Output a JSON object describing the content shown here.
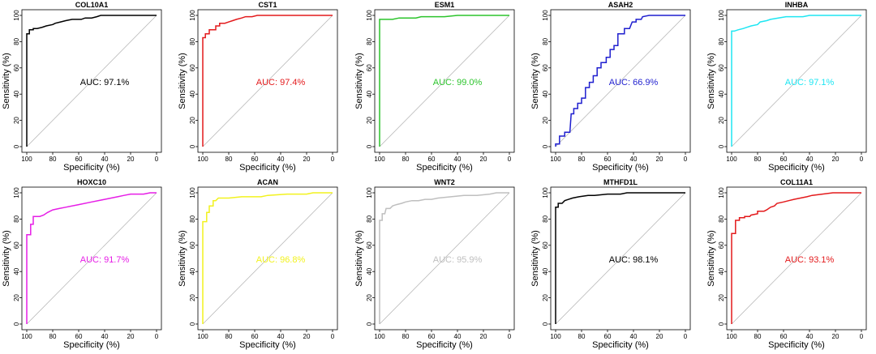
{
  "chart_data": [
    {
      "type": "line",
      "title": "COL10A1",
      "color": "#000000",
      "auc_label": "AUC: 97.1%",
      "xlabel": "Specificity (%)",
      "ylabel": "Sensitivity (%)",
      "xlim": [
        100,
        0
      ],
      "ylim": [
        0,
        100
      ],
      "xticks": [
        "100",
        "80",
        "60",
        "40",
        "20",
        "0"
      ],
      "yticks": [
        "0",
        "20",
        "40",
        "60",
        "80",
        "100"
      ],
      "points": [
        [
          100,
          0
        ],
        [
          100,
          86
        ],
        [
          98,
          86
        ],
        [
          98,
          89
        ],
        [
          95,
          89
        ],
        [
          95,
          90
        ],
        [
          92,
          90
        ],
        [
          88,
          91
        ],
        [
          85,
          92
        ],
        [
          80,
          93
        ],
        [
          78,
          94
        ],
        [
          74,
          95
        ],
        [
          70,
          96
        ],
        [
          65,
          97
        ],
        [
          58,
          97
        ],
        [
          55,
          98
        ],
        [
          50,
          98
        ],
        [
          46,
          99
        ],
        [
          43,
          100
        ],
        [
          0,
          100
        ]
      ]
    },
    {
      "type": "line",
      "title": "CST1",
      "color": "#e31a1c",
      "auc_label": "AUC: 97.4%",
      "xlabel": "Specificity (%)",
      "ylabel": "Sensitivity (%)",
      "xlim": [
        100,
        0
      ],
      "ylim": [
        0,
        100
      ],
      "xticks": [
        "100",
        "80",
        "60",
        "40",
        "20",
        "0"
      ],
      "yticks": [
        "0",
        "20",
        "40",
        "60",
        "80",
        "100"
      ],
      "points": [
        [
          100,
          0
        ],
        [
          100,
          83
        ],
        [
          98,
          83
        ],
        [
          98,
          86
        ],
        [
          95,
          86
        ],
        [
          95,
          89
        ],
        [
          90,
          89
        ],
        [
          90,
          92
        ],
        [
          87,
          92
        ],
        [
          87,
          94
        ],
        [
          83,
          94
        ],
        [
          80,
          95
        ],
        [
          77,
          96
        ],
        [
          74,
          97
        ],
        [
          70,
          98
        ],
        [
          67,
          99
        ],
        [
          62,
          99
        ],
        [
          58,
          100
        ],
        [
          0,
          100
        ]
      ]
    },
    {
      "type": "line",
      "title": "ESM1",
      "color": "#2bc42b",
      "auc_label": "AUC: 99.0%",
      "xlabel": "Specificity (%)",
      "ylabel": "Sensitivity (%)",
      "xlim": [
        100,
        0
      ],
      "ylim": [
        0,
        100
      ],
      "xticks": [
        "100",
        "80",
        "60",
        "40",
        "20",
        "0"
      ],
      "yticks": [
        "0",
        "20",
        "40",
        "60",
        "80",
        "100"
      ],
      "points": [
        [
          100,
          0
        ],
        [
          100,
          97
        ],
        [
          95,
          97
        ],
        [
          90,
          97
        ],
        [
          85,
          98
        ],
        [
          78,
          98
        ],
        [
          72,
          98
        ],
        [
          68,
          99
        ],
        [
          55,
          99
        ],
        [
          50,
          99
        ],
        [
          40,
          100
        ],
        [
          0,
          100
        ]
      ]
    },
    {
      "type": "line",
      "title": "ASAH2",
      "color": "#1f1fcf",
      "auc_label": "AUC: 66.9%",
      "xlabel": "Specificity (%)",
      "ylabel": "Sensitivity (%)",
      "xlim": [
        100,
        0
      ],
      "ylim": [
        0,
        100
      ],
      "xticks": [
        "100",
        "80",
        "60",
        "40",
        "20",
        "0"
      ],
      "yticks": [
        "0",
        "20",
        "40",
        "60",
        "80",
        "100"
      ],
      "points": [
        [
          100,
          0
        ],
        [
          100,
          2
        ],
        [
          97,
          2
        ],
        [
          97,
          8
        ],
        [
          93,
          8
        ],
        [
          93,
          11
        ],
        [
          89,
          11
        ],
        [
          88,
          25
        ],
        [
          86,
          25
        ],
        [
          86,
          29
        ],
        [
          83,
          29
        ],
        [
          83,
          33
        ],
        [
          80,
          33
        ],
        [
          80,
          37
        ],
        [
          77,
          37
        ],
        [
          77,
          45
        ],
        [
          74,
          45
        ],
        [
          74,
          49
        ],
        [
          71,
          49
        ],
        [
          71,
          54
        ],
        [
          68,
          54
        ],
        [
          68,
          60
        ],
        [
          65,
          60
        ],
        [
          65,
          64
        ],
        [
          61,
          64
        ],
        [
          61,
          68
        ],
        [
          58,
          68
        ],
        [
          58,
          74
        ],
        [
          55,
          74
        ],
        [
          55,
          77
        ],
        [
          52,
          77
        ],
        [
          52,
          86
        ],
        [
          47,
          86
        ],
        [
          47,
          90
        ],
        [
          43,
          90
        ],
        [
          41,
          95
        ],
        [
          38,
          95
        ],
        [
          38,
          97
        ],
        [
          34,
          97
        ],
        [
          33,
          99
        ],
        [
          28,
          100
        ],
        [
          0,
          100
        ]
      ]
    },
    {
      "type": "line",
      "title": "INHBA",
      "color": "#1ee6f2",
      "auc_label": "AUC: 97.1%",
      "xlabel": "Specificity (%)",
      "ylabel": "Sensitivity (%)",
      "xlim": [
        100,
        0
      ],
      "ylim": [
        0,
        100
      ],
      "xticks": [
        "100",
        "80",
        "60",
        "40",
        "20",
        "0"
      ],
      "yticks": [
        "0",
        "20",
        "40",
        "60",
        "80",
        "100"
      ],
      "points": [
        [
          100,
          0
        ],
        [
          100,
          88
        ],
        [
          98,
          88
        ],
        [
          95,
          89
        ],
        [
          91,
          90
        ],
        [
          88,
          91
        ],
        [
          85,
          92
        ],
        [
          80,
          93
        ],
        [
          78,
          95
        ],
        [
          73,
          96
        ],
        [
          70,
          97
        ],
        [
          64,
          98
        ],
        [
          58,
          99
        ],
        [
          45,
          99
        ],
        [
          40,
          100
        ],
        [
          0,
          100
        ]
      ]
    },
    {
      "type": "line",
      "title": "HOXC10",
      "color": "#e61ee6",
      "auc_label": "AUC: 91.7%",
      "xlabel": "Specificity (%)",
      "ylabel": "Sensitivity (%)",
      "xlim": [
        100,
        0
      ],
      "ylim": [
        0,
        100
      ],
      "xticks": [
        "100",
        "80",
        "60",
        "40",
        "20",
        "0"
      ],
      "yticks": [
        "0",
        "20",
        "40",
        "60",
        "80",
        "100"
      ],
      "points": [
        [
          100,
          0
        ],
        [
          100,
          68
        ],
        [
          97,
          68
        ],
        [
          97,
          76
        ],
        [
          95,
          76
        ],
        [
          95,
          82
        ],
        [
          90,
          82
        ],
        [
          87,
          83
        ],
        [
          84,
          85
        ],
        [
          80,
          87
        ],
        [
          75,
          88
        ],
        [
          70,
          89
        ],
        [
          60,
          91
        ],
        [
          50,
          93
        ],
        [
          40,
          95
        ],
        [
          30,
          97
        ],
        [
          25,
          98
        ],
        [
          20,
          99
        ],
        [
          10,
          99
        ],
        [
          5,
          100
        ],
        [
          0,
          100
        ]
      ]
    },
    {
      "type": "line",
      "title": "ACAN",
      "color": "#f2f21e",
      "auc_label": "AUC: 96.8%",
      "xlabel": "Specificity (%)",
      "ylabel": "Sensitivity (%)",
      "xlim": [
        100,
        0
      ],
      "ylim": [
        0,
        100
      ],
      "xticks": [
        "100",
        "80",
        "60",
        "40",
        "20",
        "0"
      ],
      "yticks": [
        "0",
        "20",
        "40",
        "60",
        "80",
        "100"
      ],
      "points": [
        [
          100,
          0
        ],
        [
          100,
          78
        ],
        [
          97,
          78
        ],
        [
          97,
          85
        ],
        [
          95,
          85
        ],
        [
          95,
          90
        ],
        [
          92,
          90
        ],
        [
          92,
          94
        ],
        [
          90,
          94
        ],
        [
          88,
          96
        ],
        [
          80,
          96
        ],
        [
          70,
          97
        ],
        [
          55,
          97
        ],
        [
          50,
          98
        ],
        [
          35,
          99
        ],
        [
          20,
          99
        ],
        [
          15,
          100
        ],
        [
          0,
          100
        ]
      ]
    },
    {
      "type": "line",
      "title": "WNT2",
      "color": "#bfbfbf",
      "auc_label": "AUC: 95.9%",
      "xlabel": "Specificity (%)",
      "ylabel": "Sensitivity (%)",
      "xlim": [
        100,
        0
      ],
      "ylim": [
        0,
        100
      ],
      "xticks": [
        "100",
        "80",
        "60",
        "40",
        "20",
        "0"
      ],
      "yticks": [
        "0",
        "20",
        "40",
        "60",
        "80",
        "100"
      ],
      "points": [
        [
          100,
          0
        ],
        [
          100,
          79
        ],
        [
          98,
          79
        ],
        [
          98,
          84
        ],
        [
          96,
          84
        ],
        [
          95,
          88
        ],
        [
          92,
          88
        ],
        [
          90,
          90
        ],
        [
          87,
          91
        ],
        [
          83,
          92
        ],
        [
          80,
          93
        ],
        [
          75,
          94
        ],
        [
          70,
          94
        ],
        [
          65,
          95
        ],
        [
          60,
          95
        ],
        [
          55,
          96
        ],
        [
          45,
          97
        ],
        [
          35,
          98
        ],
        [
          25,
          98
        ],
        [
          15,
          99
        ],
        [
          10,
          100
        ],
        [
          0,
          100
        ]
      ]
    },
    {
      "type": "line",
      "title": "MTHFD1L",
      "color": "#000000",
      "auc_label": "AUC: 98.1%",
      "xlabel": "Specificity (%)",
      "ylabel": "Sensitivity (%)",
      "xlim": [
        100,
        0
      ],
      "ylim": [
        0,
        100
      ],
      "xticks": [
        "100",
        "80",
        "60",
        "40",
        "20",
        "0"
      ],
      "yticks": [
        "0",
        "20",
        "40",
        "60",
        "80",
        "100"
      ],
      "points": [
        [
          100,
          0
        ],
        [
          100,
          89
        ],
        [
          98,
          89
        ],
        [
          98,
          92
        ],
        [
          95,
          92
        ],
        [
          93,
          94
        ],
        [
          90,
          95
        ],
        [
          87,
          96
        ],
        [
          82,
          97
        ],
        [
          75,
          98
        ],
        [
          70,
          98
        ],
        [
          60,
          99
        ],
        [
          50,
          99
        ],
        [
          45,
          100
        ],
        [
          0,
          100
        ]
      ]
    },
    {
      "type": "line",
      "title": "COL11A1",
      "color": "#e31a1c",
      "auc_label": "AUC: 93.1%",
      "xlabel": "Specificity (%)",
      "ylabel": "Sensitivity (%)",
      "xlim": [
        100,
        0
      ],
      "ylim": [
        0,
        100
      ],
      "xticks": [
        "100",
        "80",
        "60",
        "40",
        "20",
        "0"
      ],
      "yticks": [
        "0",
        "20",
        "40",
        "60",
        "80",
        "100"
      ],
      "points": [
        [
          100,
          0
        ],
        [
          100,
          69
        ],
        [
          97,
          69
        ],
        [
          97,
          79
        ],
        [
          94,
          79
        ],
        [
          94,
          81
        ],
        [
          90,
          81
        ],
        [
          90,
          82
        ],
        [
          86,
          82
        ],
        [
          85,
          83
        ],
        [
          80,
          84
        ],
        [
          80,
          86
        ],
        [
          75,
          86
        ],
        [
          73,
          87
        ],
        [
          70,
          89
        ],
        [
          67,
          90
        ],
        [
          65,
          92
        ],
        [
          60,
          93
        ],
        [
          56,
          94
        ],
        [
          52,
          95
        ],
        [
          47,
          96
        ],
        [
          42,
          97
        ],
        [
          38,
          98
        ],
        [
          30,
          99
        ],
        [
          22,
          100
        ],
        [
          0,
          100
        ]
      ]
    }
  ]
}
